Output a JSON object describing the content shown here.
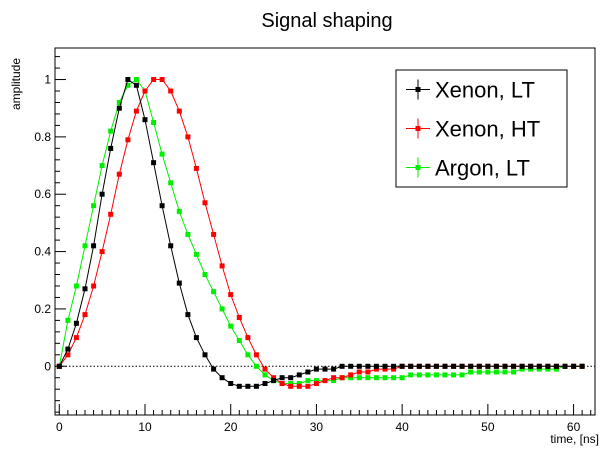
{
  "chart_data": {
    "type": "line",
    "title": "Signal shaping",
    "xlabel": "time, [ns]",
    "ylabel": "amplitude",
    "xlim": [
      -0.5,
      62.5
    ],
    "ylim": [
      -0.17,
      1.11
    ],
    "xticks": [
      0,
      10,
      20,
      30,
      40,
      50,
      60
    ],
    "yticks": [
      0,
      0.2,
      0.4,
      0.6,
      0.8,
      1
    ],
    "ytick_labels": [
      "0",
      "0.2",
      "0.4",
      "0.6",
      "0.8",
      "1"
    ],
    "grid": false,
    "zero_line": true,
    "legend_position": "top-right",
    "series": [
      {
        "name": "Xenon, LT",
        "color": "#000000",
        "x": [
          0,
          1,
          2,
          3,
          4,
          5,
          6,
          7,
          8,
          9,
          10,
          11,
          12,
          13,
          14,
          15,
          16,
          17,
          18,
          19,
          20,
          21,
          22,
          23,
          24,
          25,
          26,
          27,
          28,
          29,
          30,
          31,
          32,
          33,
          34,
          35,
          36,
          37,
          38,
          39,
          40,
          41,
          42,
          43,
          44,
          45,
          46,
          47,
          48,
          49,
          50,
          51,
          52,
          53,
          54,
          55,
          56,
          57,
          58,
          59,
          60,
          61
        ],
        "y": [
          0,
          0.06,
          0.15,
          0.27,
          0.42,
          0.6,
          0.76,
          0.9,
          1.0,
          0.98,
          0.86,
          0.71,
          0.56,
          0.42,
          0.29,
          0.18,
          0.1,
          0.04,
          -0.01,
          -0.04,
          -0.06,
          -0.07,
          -0.07,
          -0.07,
          -0.06,
          -0.05,
          -0.04,
          -0.04,
          -0.03,
          -0.02,
          -0.01,
          -0.01,
          -0.01,
          0,
          0,
          0,
          0,
          0,
          0,
          0,
          0,
          0,
          0,
          0,
          0,
          0,
          0,
          0,
          0,
          0,
          0,
          0,
          0,
          0,
          0,
          0,
          0,
          0,
          0,
          0,
          0,
          0
        ]
      },
      {
        "name": "Xenon, HT",
        "color": "#ff0000",
        "x": [
          0,
          1,
          2,
          3,
          4,
          5,
          6,
          7,
          8,
          9,
          10,
          11,
          12,
          13,
          14,
          15,
          16,
          17,
          18,
          19,
          20,
          21,
          22,
          23,
          24,
          25,
          26,
          27,
          28,
          29,
          30,
          31,
          32,
          33,
          34,
          35,
          36,
          37,
          38,
          39,
          40,
          41,
          42,
          43,
          44,
          45,
          46,
          47,
          48,
          49,
          50,
          51,
          52,
          53,
          54,
          55,
          56,
          57,
          58,
          59,
          60,
          61
        ],
        "y": [
          0,
          0.04,
          0.1,
          0.18,
          0.28,
          0.4,
          0.53,
          0.67,
          0.79,
          0.89,
          0.96,
          1.0,
          1.0,
          0.96,
          0.89,
          0.8,
          0.69,
          0.57,
          0.46,
          0.35,
          0.25,
          0.17,
          0.1,
          0.04,
          -0.01,
          -0.04,
          -0.06,
          -0.07,
          -0.07,
          -0.07,
          -0.06,
          -0.05,
          -0.04,
          -0.04,
          -0.03,
          -0.02,
          -0.02,
          -0.01,
          -0.01,
          -0.01,
          0,
          0,
          0,
          0,
          0,
          0,
          0,
          0,
          0,
          0,
          0,
          0,
          0,
          0,
          0,
          0,
          0,
          0,
          0,
          0,
          0,
          0
        ]
      },
      {
        "name": "Argon, LT",
        "color": "#00ee00",
        "x": [
          0,
          1,
          2,
          3,
          4,
          5,
          6,
          7,
          8,
          9,
          10,
          11,
          12,
          13,
          14,
          15,
          16,
          17,
          18,
          19,
          20,
          21,
          22,
          23,
          24,
          25,
          26,
          27,
          28,
          29,
          30,
          31,
          32,
          33,
          34,
          35,
          36,
          37,
          38,
          39,
          40,
          41,
          42,
          43,
          44,
          45,
          46,
          47,
          48,
          49,
          50,
          51,
          52,
          53,
          54,
          55,
          56,
          57,
          58,
          59,
          60,
          61
        ],
        "y": [
          0,
          0.16,
          0.28,
          0.42,
          0.56,
          0.7,
          0.82,
          0.92,
          0.98,
          1.0,
          0.96,
          0.85,
          0.74,
          0.64,
          0.54,
          0.46,
          0.39,
          0.32,
          0.26,
          0.2,
          0.14,
          0.09,
          0.04,
          0,
          -0.03,
          -0.05,
          -0.06,
          -0.06,
          -0.06,
          -0.05,
          -0.05,
          -0.05,
          -0.05,
          -0.04,
          -0.04,
          -0.04,
          -0.04,
          -0.04,
          -0.04,
          -0.04,
          -0.04,
          -0.03,
          -0.03,
          -0.03,
          -0.03,
          -0.03,
          -0.03,
          -0.03,
          -0.02,
          -0.02,
          -0.02,
          -0.02,
          -0.02,
          -0.02,
          -0.01,
          -0.01,
          -0.01,
          -0.01,
          -0.01,
          0,
          0,
          0
        ]
      }
    ]
  }
}
